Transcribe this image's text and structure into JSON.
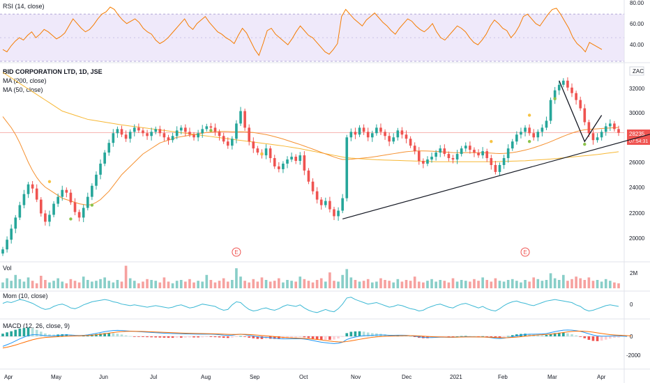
{
  "colors": {
    "up": "#26a69a",
    "down": "#ef5350",
    "rsi": "#f57c00",
    "rsi_band": "#e8e0f8",
    "ma200": "#f7b733",
    "ma50": "#f5902f",
    "mom": "#3bb8d4",
    "macd": "#2196f3",
    "signal": "#ff6d00",
    "price_line": "#ef5350",
    "price_tag": "#ef5350",
    "trend": "#131722"
  },
  "rsi": {
    "title": "RSI (14, close)",
    "ticks": [
      "80.00",
      "60.00",
      "40.00"
    ],
    "values": [
      40,
      38,
      43,
      47,
      50,
      48,
      52,
      55,
      50,
      53,
      57,
      55,
      52,
      49,
      51,
      54,
      60,
      66,
      62,
      58,
      55,
      57,
      61,
      66,
      70,
      72,
      76,
      74,
      69,
      65,
      62,
      64,
      66,
      63,
      58,
      55,
      53,
      48,
      45,
      47,
      50,
      54,
      58,
      62,
      66,
      60,
      57,
      62,
      65,
      68,
      63,
      59,
      55,
      53,
      50,
      48,
      45,
      52,
      58,
      54,
      47,
      40,
      35,
      45,
      56,
      58,
      53,
      50,
      47,
      44,
      49,
      55,
      60,
      56,
      52,
      50,
      46,
      42,
      38,
      36,
      40,
      45,
      68,
      74,
      70,
      66,
      63,
      60,
      65,
      68,
      71,
      67,
      63,
      60,
      56,
      53,
      58,
      62,
      66,
      64,
      60,
      57,
      55,
      58,
      62,
      55,
      50,
      48,
      52,
      56,
      60,
      58,
      55,
      50,
      46,
      44,
      48,
      53,
      60,
      65,
      62,
      58,
      56,
      50,
      54,
      60,
      68,
      70,
      66,
      62,
      60,
      65,
      70,
      74,
      75,
      70,
      64,
      58,
      50,
      45,
      42,
      38,
      46,
      44,
      42,
      40
    ]
  },
  "price": {
    "title": "BID CORPORATION LTD, 1D, JSE",
    "ma200_label": "MA (200, close)",
    "ma50_label": "MA (50, close)",
    "currency": "ZAC",
    "ticks": [
      "32000",
      "30000",
      "28000",
      "26000",
      "24000",
      "22000",
      "20000"
    ],
    "last_price": "28235",
    "countdown": "07:54:31",
    "closes": [
      19800,
      20500,
      21300,
      22100,
      23000,
      23800,
      24500,
      24200,
      23400,
      22400,
      21800,
      22300,
      23100,
      23600,
      24100,
      23900,
      23200,
      22500,
      22100,
      22800,
      23600,
      24400,
      25200,
      26000,
      26800,
      27500,
      28200,
      28500,
      28100,
      27800,
      28300,
      28600,
      28400,
      28200,
      28000,
      28300,
      28500,
      28200,
      27900,
      27700,
      28000,
      28400,
      28600,
      28300,
      28100,
      27900,
      28200,
      28500,
      28700,
      28600,
      28300,
      28000,
      27600,
      27300,
      27800,
      28900,
      29800,
      28600,
      27600,
      27100,
      26800,
      26600,
      27100,
      26400,
      25800,
      25600,
      26000,
      26300,
      26500,
      26200,
      26600,
      25500,
      24700,
      24000,
      23400,
      23000,
      23300,
      22700,
      22200,
      22600,
      23500,
      27900,
      28300,
      28100,
      28600,
      28300,
      27900,
      28200,
      28600,
      28300,
      28000,
      27600,
      27900,
      28400,
      28100,
      27800,
      27300,
      26900,
      26200,
      26000,
      26300,
      26500,
      26800,
      27100,
      26700,
      26400,
      26300,
      26700,
      27100,
      27300,
      27000,
      26800,
      26600,
      26900,
      26400,
      25900,
      25400,
      25900,
      26400,
      27100,
      27600,
      28100,
      28300,
      28600,
      28200,
      27900,
      28300,
      28600,
      29100,
      30600,
      31300,
      31700,
      32000,
      31500,
      31100,
      30600,
      30000,
      29000,
      28200,
      27700,
      27900,
      28300,
      28700,
      28900,
      28500,
      28235
    ],
    "ma200": [
      32600,
      32400,
      32200,
      32000,
      31800,
      31600,
      31400,
      31200,
      31000,
      30800,
      30600,
      30400,
      30200,
      30000,
      29800,
      29700,
      29600,
      29500,
      29400,
      29300,
      29200,
      29150,
      29100,
      29050,
      29000,
      28950,
      28900,
      28850,
      28800,
      28760,
      28720,
      28680,
      28640,
      28600,
      28560,
      28520,
      28480,
      28440,
      28400,
      28360,
      28320,
      28280,
      28240,
      28200,
      28160,
      28120,
      28080,
      28040,
      28000,
      27960,
      27920,
      27880,
      27840,
      27800,
      27760,
      27720,
      27680,
      27640,
      27600,
      27560,
      27520,
      27480,
      27440,
      27400,
      27360,
      27320,
      27280,
      27230,
      27180,
      27130,
      27080,
      27020,
      26960,
      26900,
      26840,
      26780,
      26720,
      26660,
      26600,
      26540,
      26480,
      26430,
      26400,
      26380,
      26360,
      26340,
      26320,
      26300,
      26280,
      26270,
      26260,
      26250,
      26240,
      26230,
      26220,
      26210,
      26200,
      26190,
      26180,
      26170,
      26160,
      26150,
      26140,
      26140,
      26140,
      26140,
      26140,
      26140,
      26140,
      26140,
      26140,
      26140,
      26140,
      26140,
      26140,
      26140,
      26140,
      26150,
      26160,
      26170,
      26180,
      26190,
      26200,
      26210,
      26230,
      26250,
      26270,
      26290,
      26310,
      26330,
      26360,
      26390,
      26420,
      26450,
      26480,
      26510,
      26540,
      26570,
      26600,
      26630,
      26660,
      26700,
      26740,
      26780,
      26820,
      26860
    ],
    "ma50": [
      29400,
      29000,
      28600,
      28100,
      27500,
      26800,
      26100,
      25500,
      25000,
      24600,
      24300,
      24100,
      23900,
      23700,
      23500,
      23400,
      23300,
      23200,
      23100,
      23050,
      23000,
      23050,
      23200,
      23400,
      23700,
      24000,
      24400,
      24800,
      25200,
      25500,
      25800,
      26100,
      26400,
      26700,
      26900,
      27100,
      27300,
      27500,
      27600,
      27700,
      27800,
      27900,
      27950,
      28000,
      28050,
      28100,
      28150,
      28200,
      28250,
      28280,
      28300,
      28320,
      28330,
      28320,
      28300,
      28300,
      28310,
      28300,
      28280,
      28250,
      28200,
      28150,
      28100,
      28030,
      27950,
      27870,
      27780,
      27680,
      27580,
      27480,
      27380,
      27270,
      27160,
      27050,
      26930,
      26810,
      26700,
      26590,
      26480,
      26380,
      26300,
      26300,
      26320,
      26350,
      26380,
      26410,
      26440,
      26480,
      26520,
      26570,
      26620,
      26670,
      26720,
      26770,
      26820,
      26860,
      26890,
      26910,
      26920,
      26920,
      26910,
      26900,
      26880,
      26860,
      26840,
      26820,
      26800,
      26790,
      26790,
      26800,
      26800,
      26790,
      26780,
      26790,
      26780,
      26760,
      26740,
      26730,
      26740,
      26760,
      26800,
      26850,
      26910,
      26980,
      27060,
      27150,
      27250,
      27360,
      27470,
      27590,
      27720,
      27850,
      27980,
      28100,
      28210,
      28310,
      28390,
      28450,
      28480,
      28500,
      28520,
      28540,
      28560,
      28580,
      28600,
      28620
    ],
    "trendline_points": [
      [
        80,
        22000
      ],
      [
        145,
        27500
      ]
    ],
    "flag_points": [
      [
        131,
        32000
      ],
      [
        137,
        27600
      ],
      [
        141,
        29500
      ]
    ],
    "bull_marks": [
      [
        21,
        23000
      ],
      [
        16,
        22000
      ],
      [
        49,
        28400
      ],
      [
        130,
        30700
      ],
      [
        124,
        27600
      ],
      [
        137,
        27400
      ]
    ],
    "earnings": [
      [
        "E",
        55
      ],
      [
        "E",
        123
      ]
    ],
    "star_marks": [
      [
        11,
        24700
      ],
      [
        61,
        26700
      ],
      [
        124,
        29500
      ],
      [
        115,
        27600
      ]
    ]
  },
  "volume": {
    "title": "Vol",
    "tick": "2M",
    "values": [
      0.7,
      1.2,
      0.9,
      1.6,
      1.1,
      0.8,
      1.3,
      0.9,
      0.6,
      1.5,
      1.0,
      0.7,
      0.9,
      1.2,
      0.8,
      0.6,
      1.1,
      0.9,
      0.7,
      1.4,
      1.0,
      0.8,
      0.9,
      1.1,
      1.3,
      0.9,
      0.7,
      1.0,
      0.8,
      2.7,
      1.2,
      0.9,
      0.6,
      0.8,
      1.1,
      1.0,
      0.9,
      0.7,
      1.3,
      0.8,
      0.6,
      0.9,
      1.0,
      0.8,
      1.1,
      0.7,
      0.9,
      0.8,
      1.6,
      1.0,
      0.7,
      0.9,
      1.2,
      0.8,
      1.0,
      2.4,
      1.4,
      0.9,
      0.7,
      1.1,
      0.8,
      1.3,
      1.0,
      0.8,
      0.9,
      1.2,
      0.7,
      1.0,
      0.9,
      0.8,
      1.4,
      1.1,
      0.9,
      0.7,
      1.0,
      1.2,
      0.8,
      1.9,
      0.9,
      0.8,
      1.6,
      2.3,
      1.3,
      1.0,
      0.8,
      0.9,
      1.1,
      0.7,
      0.8,
      1.2,
      1.0,
      0.9,
      0.7,
      1.1,
      0.8,
      1.0,
      0.9,
      1.4,
      0.8,
      0.7,
      0.9,
      1.1,
      0.8,
      1.0,
      0.9,
      0.7,
      1.2,
      0.8,
      1.0,
      0.9,
      0.8,
      1.1,
      0.9,
      1.3,
      1.0,
      0.8,
      1.2,
      0.9,
      0.8,
      1.0,
      1.1,
      0.9,
      0.7,
      1.0,
      0.8,
      1.3,
      1.1,
      0.9,
      1.0,
      1.8,
      1.2,
      1.0,
      1.6,
      0.9,
      1.1,
      1.4,
      1.2,
      1.0,
      1.3,
      0.9,
      1.0,
      0.8,
      1.1,
      0.9,
      0.7,
      0.6
    ]
  },
  "momentum": {
    "title": "Mom (10, close)",
    "tick": "0",
    "values": [
      0.4,
      0.6,
      0.5,
      0.7,
      0.9,
      0.8,
      0.6,
      0.4,
      0.1,
      -0.2,
      -0.4,
      -0.3,
      0.0,
      0.2,
      0.3,
      0.1,
      -0.2,
      -0.3,
      -0.1,
      0.2,
      0.4,
      0.6,
      0.7,
      0.8,
      0.9,
      0.8,
      0.6,
      0.5,
      0.3,
      0.2,
      0.1,
      0.2,
      0.1,
      0.0,
      -0.1,
      0.0,
      0.1,
      0.0,
      -0.1,
      -0.2,
      -0.1,
      0.1,
      0.2,
      0.0,
      -0.2,
      -0.1,
      0.1,
      0.3,
      0.2,
      0.1,
      0.0,
      -0.3,
      -0.5,
      -0.4,
      0.2,
      0.6,
      0.5,
      0.0,
      -0.4,
      -0.6,
      -0.5,
      -0.3,
      -0.2,
      -0.4,
      -0.5,
      -0.3,
      0.0,
      0.2,
      0.1,
      0.0,
      0.2,
      -0.2,
      -0.5,
      -0.7,
      -0.8,
      -0.6,
      -0.4,
      -0.6,
      -0.7,
      -0.3,
      0.3,
      1.1,
      1.2,
      0.9,
      0.7,
      0.5,
      0.3,
      0.4,
      0.5,
      0.3,
      0.1,
      -0.1,
      0.0,
      0.2,
      0.1,
      -0.1,
      -0.3,
      -0.4,
      -0.6,
      -0.5,
      -0.2,
      0.0,
      0.2,
      0.3,
      0.1,
      -0.1,
      -0.2,
      0.1,
      0.3,
      0.4,
      0.2,
      0.0,
      -0.2,
      0.0,
      -0.3,
      -0.5,
      -0.6,
      -0.3,
      0.1,
      0.4,
      0.6,
      0.7,
      0.5,
      0.4,
      0.2,
      0.1,
      0.3,
      0.5,
      0.7,
      0.8,
      0.9,
      0.8,
      0.7,
      0.6,
      0.5,
      0.2,
      0.0,
      -0.4,
      -0.6,
      -0.5,
      -0.3,
      -0.1,
      0.1,
      0.2,
      0.1,
      0.0
    ]
  },
  "macd": {
    "title": "MACD (12, 26, close, 9)",
    "ticks": [
      "0",
      "-2000"
    ],
    "macd_line": [
      -1200,
      -1000,
      -800,
      -550,
      -300,
      -100,
      100,
      200,
      200,
      150,
      80,
      50,
      60,
      100,
      150,
      180,
      160,
      120,
      100,
      120,
      180,
      260,
      360,
      460,
      560,
      640,
      700,
      720,
      700,
      660,
      620,
      590,
      560,
      530,
      500,
      470,
      440,
      410,
      380,
      350,
      330,
      320,
      300,
      290,
      280,
      270,
      260,
      260,
      270,
      260,
      240,
      200,
      150,
      120,
      140,
      220,
      260,
      200,
      120,
      40,
      -40,
      -100,
      -120,
      -160,
      -220,
      -280,
      -300,
      -300,
      -290,
      -290,
      -280,
      -320,
      -400,
      -500,
      -600,
      -700,
      -760,
      -820,
      -860,
      -820,
      -700,
      -380,
      -200,
      -80,
      20,
      80,
      100,
      120,
      160,
      170,
      160,
      130,
      120,
      140,
      140,
      120,
      80,
      20,
      -60,
      -120,
      -150,
      -150,
      -130,
      -100,
      -100,
      -110,
      -110,
      -90,
      -60,
      -40,
      -50,
      -60,
      -80,
      -70,
      -100,
      -160,
      -240,
      -260,
      -220,
      -140,
      -40,
      60,
      140,
      220,
      260,
      260,
      270,
      290,
      330,
      450,
      560,
      660,
      740,
      760,
      740,
      680,
      600,
      460,
      300,
      160,
      60,
      20,
      20,
      40,
      60,
      50,
      20,
      -10
    ],
    "signal_line": [
      -1400,
      -1300,
      -1180,
      -1040,
      -880,
      -720,
      -560,
      -410,
      -290,
      -200,
      -140,
      -100,
      -70,
      -40,
      -10,
      20,
      40,
      60,
      70,
      80,
      100,
      140,
      190,
      250,
      320,
      390,
      460,
      520,
      560,
      590,
      600,
      600,
      590,
      580,
      560,
      540,
      520,
      500,
      480,
      460,
      440,
      420,
      400,
      380,
      360,
      350,
      340,
      330,
      320,
      310,
      300,
      280,
      260,
      240,
      230,
      230,
      240,
      240,
      220,
      190,
      150,
      100,
      60,
      20,
      -30,
      -80,
      -120,
      -160,
      -190,
      -210,
      -230,
      -250,
      -280,
      -320,
      -370,
      -430,
      -500,
      -560,
      -620,
      -660,
      -680,
      -620,
      -540,
      -450,
      -360,
      -270,
      -190,
      -120,
      -60,
      -20,
      10,
      30,
      50,
      60,
      70,
      80,
      80,
      70,
      50,
      20,
      -10,
      -40,
      -60,
      -70,
      -80,
      -90,
      -90,
      -90,
      -80,
      -70,
      -70,
      -70,
      -70,
      -80,
      -90,
      -110,
      -140,
      -160,
      -170,
      -160,
      -130,
      -90,
      -40,
      20,
      80,
      130,
      170,
      200,
      230,
      260,
      320,
      390,
      460,
      530,
      580,
      610,
      620,
      600,
      560,
      500,
      420,
      340,
      270,
      210,
      170,
      140,
      110,
      80,
      60
    ]
  },
  "xaxis": [
    "Apr",
    "May",
    "Jun",
    "Jul",
    "Aug",
    "Sep",
    "Oct",
    "Nov",
    "Dec",
    "2021",
    "Feb",
    "Mar",
    "Apr"
  ]
}
